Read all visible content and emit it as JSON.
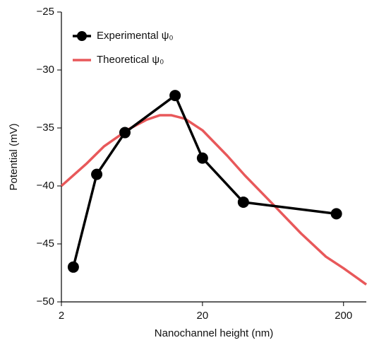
{
  "chart_data": {
    "type": "line",
    "xlabel": "Nanochannel height (nm)",
    "ylabel": "Potential (mV)",
    "xscale": "log",
    "xlim": [
      2,
      290
    ],
    "xticks": [
      2,
      20,
      200
    ],
    "ylim": [
      -50,
      -25
    ],
    "yticks": [
      {
        "value": -50,
        "label": "−50"
      },
      {
        "value": -45,
        "label": "−45"
      },
      {
        "value": -40,
        "label": "−40"
      },
      {
        "value": -35,
        "label": "−35"
      },
      {
        "value": -30,
        "label": "−30"
      },
      {
        "value": -25,
        "label": "−25"
      }
    ],
    "legend": "upper left",
    "series": [
      {
        "name": "Experimental ψ₀",
        "color": "#000000",
        "markers": true,
        "x": [
          2.43,
          3.56,
          5.64,
          12.8,
          20,
          39,
          178
        ],
        "values": [
          -47.0,
          -39.0,
          -35.4,
          -32.2,
          -37.6,
          -41.4,
          -42.4
        ]
      },
      {
        "name": "Theoretical ψ₀",
        "color": "#e8585a",
        "markers": false,
        "x": [
          2,
          3,
          4,
          6,
          8,
          10,
          12,
          15,
          20,
          30,
          40,
          60,
          100,
          150,
          200,
          290
        ],
        "values": [
          -40.0,
          -38.1,
          -36.6,
          -35.1,
          -34.3,
          -33.9,
          -33.9,
          -34.2,
          -35.2,
          -37.4,
          -39.1,
          -41.3,
          -44.1,
          -46.1,
          -47.1,
          -48.5
        ]
      }
    ]
  }
}
